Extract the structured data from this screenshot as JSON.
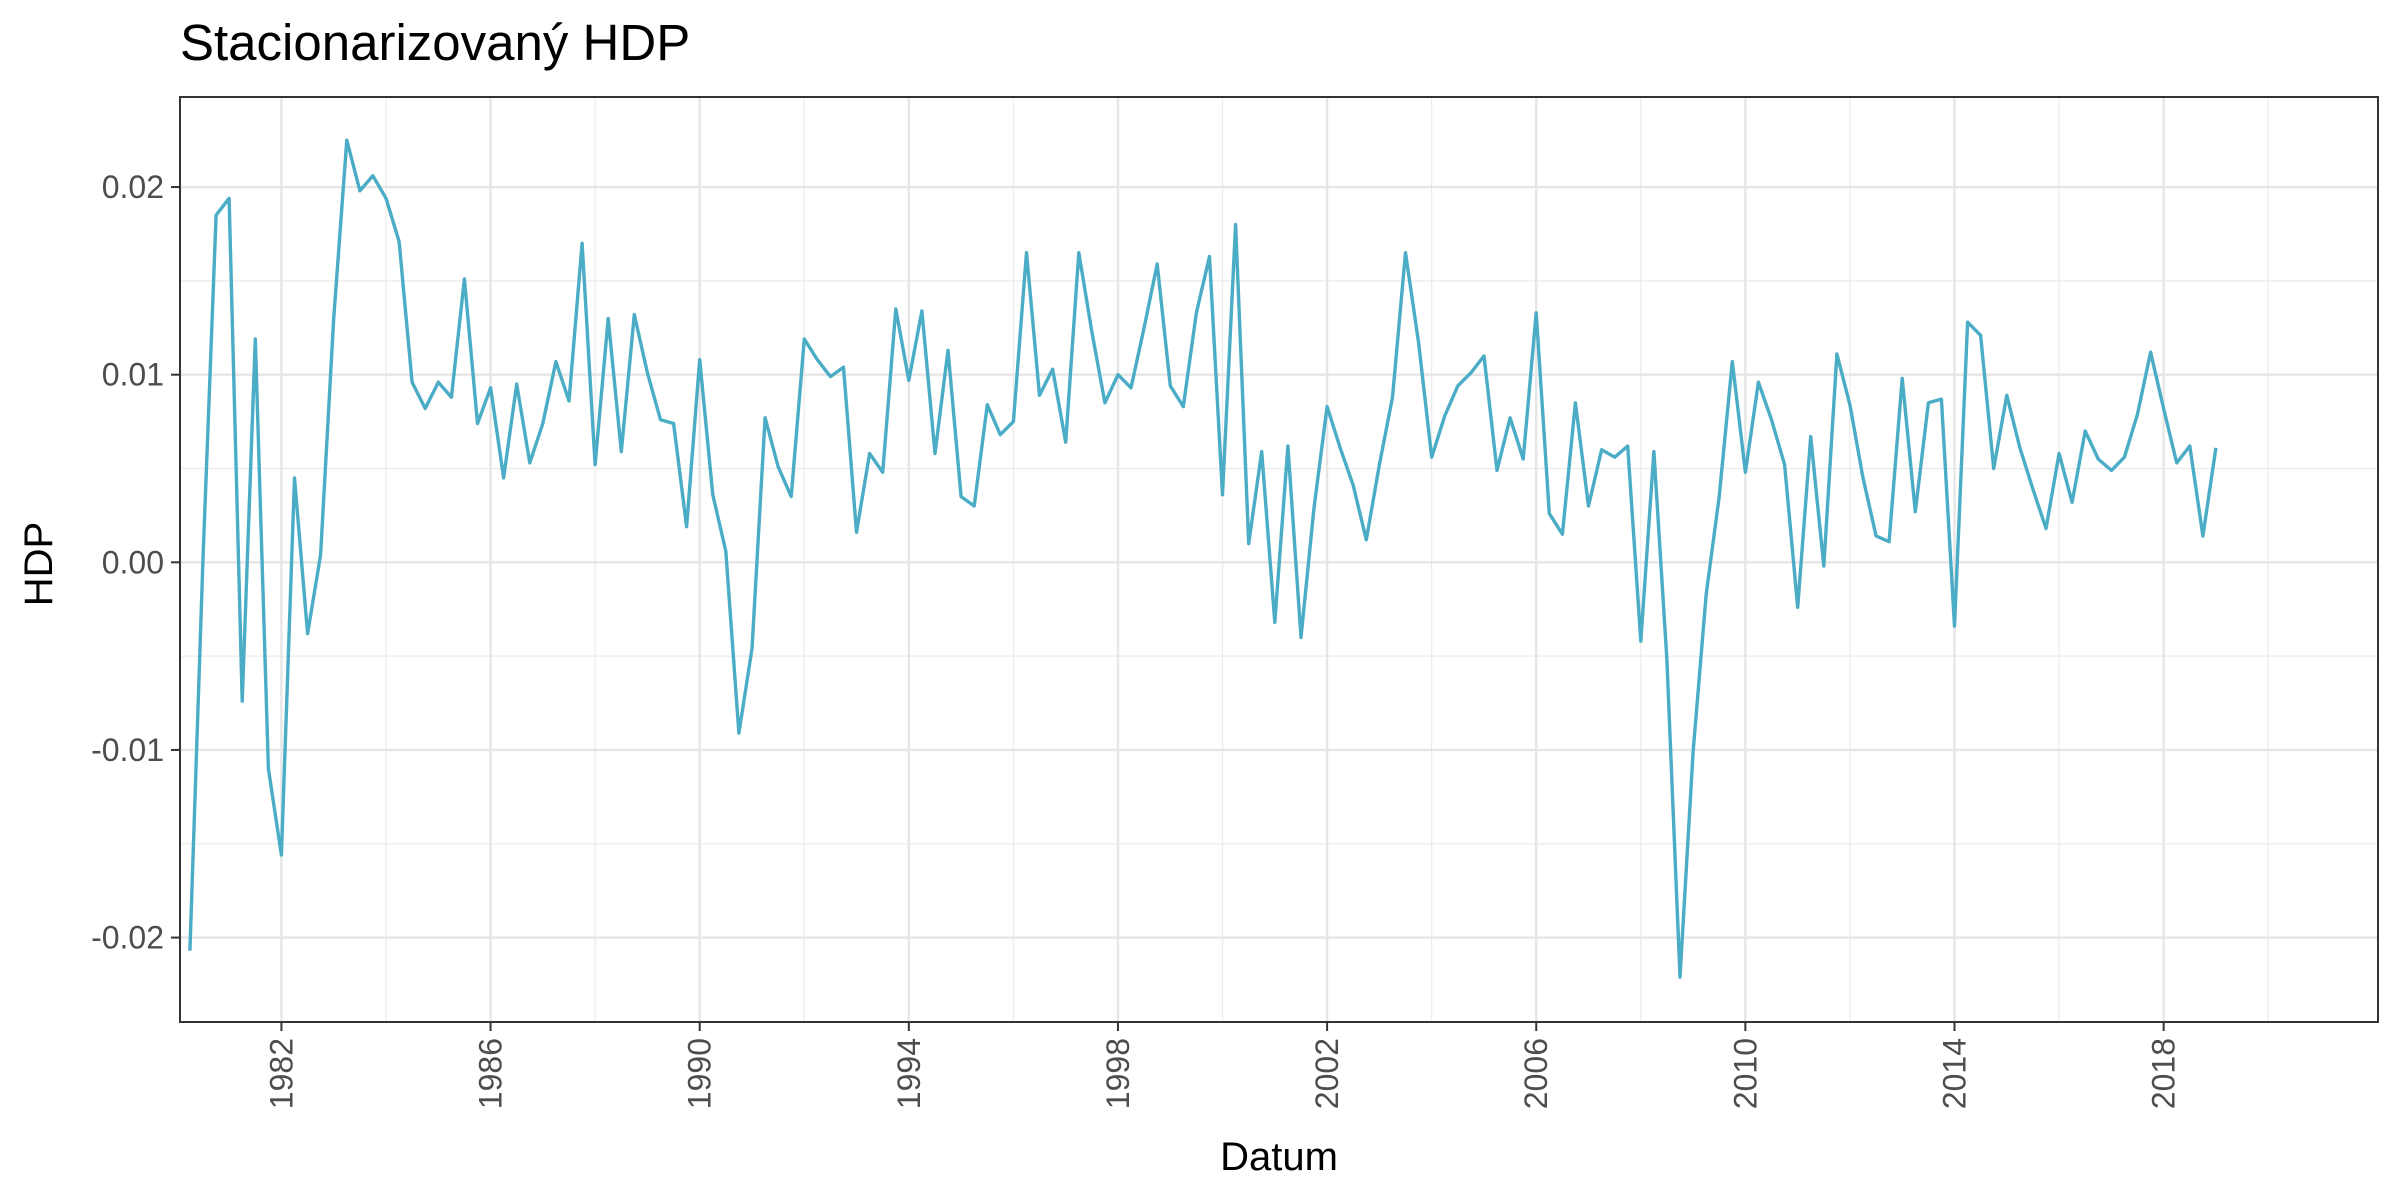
{
  "chart_data": {
    "type": "line",
    "title": "Stacionarizovaný HDP",
    "xlabel": "Datum",
    "ylabel": "HDP",
    "x_tick_labels": [
      "1982",
      "1986",
      "1990",
      "1994",
      "1998",
      "2002",
      "2006",
      "2010",
      "2014",
      "2018"
    ],
    "y_tick_labels": [
      "-0.02",
      "-0.01",
      "0.00",
      "0.01",
      "0.02"
    ],
    "y_ticks": [
      -0.02,
      -0.01,
      0.0,
      0.01,
      0.02
    ],
    "xlim": [
      1980.06,
      2022.1
    ],
    "ylim": [
      -0.0245,
      0.0248
    ],
    "grid": true,
    "line_color": "#4BACC6",
    "series": [
      {
        "x": [
          1980.25,
          1980.5,
          1980.75,
          1981.0,
          1981.25,
          1981.5,
          1981.75,
          1982.0,
          1982.25,
          1982.5,
          1982.75,
          1983.0,
          1983.25,
          1983.5,
          1983.75,
          1984.0,
          1984.25,
          1984.5,
          1984.75,
          1985.0,
          1985.25,
          1985.5,
          1985.75,
          1986.0,
          1986.25,
          1986.5,
          1986.75,
          1987.0,
          1987.25,
          1987.5,
          1987.75,
          1988.0,
          1988.25,
          1988.5,
          1988.75,
          1989.0,
          1989.25,
          1989.5,
          1989.75,
          1990.0,
          1990.25,
          1990.5,
          1990.75,
          1991.0,
          1991.25,
          1991.5,
          1991.75,
          1992.0,
          1992.25,
          1992.5,
          1992.75,
          1993.0,
          1993.25,
          1993.5,
          1993.75,
          1994.0,
          1994.25,
          1994.5,
          1994.75,
          1995.0,
          1995.25,
          1995.5,
          1995.75,
          1996.0,
          1996.25,
          1996.5,
          1996.75,
          1997.0,
          1997.25,
          1997.5,
          1997.75,
          1998.0,
          1998.25,
          1998.5,
          1998.75,
          1999.0,
          1999.25,
          1999.5,
          1999.75,
          2000.0,
          2000.25,
          2000.5,
          2000.75,
          2001.0,
          2001.25,
          2001.5,
          2001.75,
          2002.0,
          2002.25,
          2002.5,
          2002.75,
          2003.0,
          2003.25,
          2003.5,
          2003.75,
          2004.0,
          2004.25,
          2004.5,
          2004.75,
          2005.0,
          2005.25,
          2005.5,
          2005.75,
          2006.0,
          2006.25,
          2006.5,
          2006.75,
          2007.0,
          2007.25,
          2007.5,
          2007.75,
          2008.0,
          2008.25,
          2008.5,
          2008.75,
          2009.0,
          2009.25,
          2009.5,
          2009.75,
          2010.0,
          2010.25,
          2010.5,
          2010.75,
          2011.0,
          2011.25,
          2011.5,
          2011.75,
          2012.0,
          2012.25,
          2012.5,
          2012.75,
          2013.0,
          2013.25,
          2013.5,
          2013.75,
          2014.0,
          2014.25,
          2014.5,
          2014.75,
          2015.0,
          2015.25,
          2015.5,
          2015.75,
          2016.0,
          2016.25,
          2016.5,
          2016.75,
          2017.0,
          2017.25,
          2017.5,
          2017.75,
          2018.0,
          2018.25,
          2018.5,
          2018.75,
          2019.0
        ],
        "values": [
          -0.0207,
          0.0002,
          0.0185,
          0.0194,
          -0.0074,
          0.0119,
          -0.011,
          -0.0156,
          0.0045,
          -0.0038,
          0.0004,
          0.013,
          0.0225,
          0.0198,
          0.0206,
          0.0194,
          0.0171,
          0.0096,
          0.0082,
          0.0096,
          0.0088,
          0.0151,
          0.0074,
          0.0093,
          0.0045,
          0.0095,
          0.0053,
          0.0074,
          0.0107,
          0.0086,
          0.017,
          0.0052,
          0.013,
          0.0059,
          0.0132,
          0.0101,
          0.0076,
          0.0074,
          0.0019,
          0.0108,
          0.0036,
          0.0006,
          -0.0091,
          -0.0046,
          0.0077,
          0.0051,
          0.0035,
          0.0119,
          0.0108,
          0.0099,
          0.0104,
          0.0016,
          0.0058,
          0.0048,
          0.0135,
          0.0097,
          0.0134,
          0.0058,
          0.0113,
          0.0035,
          0.003,
          0.0084,
          0.0068,
          0.0075,
          0.0165,
          0.0089,
          0.0103,
          0.0064,
          0.0165,
          0.0123,
          0.0085,
          0.01,
          0.0093,
          0.0125,
          0.0159,
          0.0094,
          0.0083,
          0.0133,
          0.0163,
          0.0036,
          0.018,
          0.001,
          0.0059,
          -0.0032,
          0.0062,
          -0.004,
          0.0029,
          0.0083,
          0.0061,
          0.0041,
          0.0012,
          0.0052,
          0.0088,
          0.0165,
          0.0117,
          0.0056,
          0.0078,
          0.0094,
          0.0101,
          0.011,
          0.0049,
          0.0077,
          0.0055,
          0.0133,
          0.0026,
          0.0015,
          0.0085,
          0.003,
          0.006,
          0.0056,
          0.0062,
          -0.0042,
          0.0059,
          -0.0052,
          -0.0221,
          -0.0101,
          -0.0017,
          0.0035,
          0.0107,
          0.0048,
          0.0096,
          0.0076,
          0.0052,
          -0.0024,
          0.0067,
          -0.0002,
          0.0111,
          0.0084,
          0.0045,
          0.0014,
          0.0011,
          0.0098,
          0.0027,
          0.0085,
          0.0087,
          -0.0034,
          0.0128,
          0.0121,
          0.005,
          0.0089,
          0.0061,
          0.0039,
          0.0018,
          0.0058,
          0.0032,
          0.007,
          0.0055,
          0.0049,
          0.0056,
          0.0079,
          0.0112,
          0.0082,
          0.0053,
          0.0062,
          0.0014,
          0.0061
        ]
      }
    ]
  }
}
